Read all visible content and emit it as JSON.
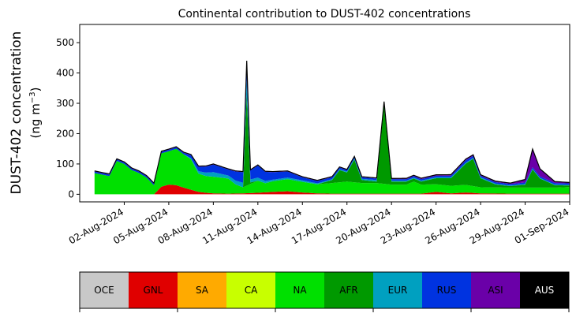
{
  "chart_data": {
    "type": "area",
    "title": "Continental contribution to DUST-402 concentrations",
    "ylabel_line1": "DUST-402 concentration",
    "ylabel_line2_prefix": "(ng m",
    "ylabel_line2_sup": "−3",
    "ylabel_line2_suffix": ")",
    "x_start": "2024-07-31",
    "x_end": "2024-09-01",
    "xlim": [
      "2024-07-30",
      "2024-09-01"
    ],
    "ylim": [
      -25,
      560
    ],
    "yticks": [
      0,
      100,
      200,
      300,
      400,
      500
    ],
    "xticks": [
      {
        "date": "2024-08-02",
        "label": "02-Aug-2024"
      },
      {
        "date": "2024-08-05",
        "label": "05-Aug-2024"
      },
      {
        "date": "2024-08-08",
        "label": "08-Aug-2024"
      },
      {
        "date": "2024-08-11",
        "label": "11-Aug-2024"
      },
      {
        "date": "2024-08-14",
        "label": "14-Aug-2024"
      },
      {
        "date": "2024-08-17",
        "label": "17-Aug-2024"
      },
      {
        "date": "2024-08-20",
        "label": "20-Aug-2024"
      },
      {
        "date": "2024-08-23",
        "label": "23-Aug-2024"
      },
      {
        "date": "2024-08-26",
        "label": "26-Aug-2024"
      },
      {
        "date": "2024-08-29",
        "label": "29-Aug-2024"
      },
      {
        "date": "2024-09-01",
        "label": "01-Sep-2024"
      }
    ],
    "total_color": "#000000",
    "series": [
      {
        "name": "GNL",
        "color": "#e00000",
        "points": [
          [
            "2024-07-31",
            0
          ],
          [
            "2024-08-04",
            0
          ],
          [
            "2024-08-04T12",
            25
          ],
          [
            "2024-08-05",
            32
          ],
          [
            "2024-08-05T12",
            30
          ],
          [
            "2024-08-06",
            22
          ],
          [
            "2024-08-06T12",
            15
          ],
          [
            "2024-08-07",
            8
          ],
          [
            "2024-08-07T12",
            5
          ],
          [
            "2024-08-08",
            3
          ],
          [
            "2024-08-09",
            2
          ],
          [
            "2024-08-10",
            3
          ],
          [
            "2024-08-11",
            5
          ],
          [
            "2024-08-12",
            8
          ],
          [
            "2024-08-13",
            10
          ],
          [
            "2024-08-14",
            6
          ],
          [
            "2024-08-15",
            3
          ],
          [
            "2024-08-16",
            2
          ],
          [
            "2024-08-18",
            2
          ],
          [
            "2024-08-20",
            2
          ],
          [
            "2024-08-22",
            2
          ],
          [
            "2024-08-23",
            8
          ],
          [
            "2024-08-24",
            3
          ],
          [
            "2024-08-25",
            6
          ],
          [
            "2024-08-26",
            3
          ],
          [
            "2024-08-28",
            2
          ],
          [
            "2024-09-01",
            2
          ]
        ]
      },
      {
        "name": "NA",
        "color": "#00e000",
        "points": [
          [
            "2024-07-31",
            70
          ],
          [
            "2024-07-31T12",
            65
          ],
          [
            "2024-08-01",
            60
          ],
          [
            "2024-08-01T12",
            110
          ],
          [
            "2024-08-02",
            100
          ],
          [
            "2024-08-02T12",
            80
          ],
          [
            "2024-08-03",
            70
          ],
          [
            "2024-08-03T12",
            55
          ],
          [
            "2024-08-04",
            30
          ],
          [
            "2024-08-04T12",
            110
          ],
          [
            "2024-08-05",
            110
          ],
          [
            "2024-08-05T12",
            120
          ],
          [
            "2024-08-06",
            110
          ],
          [
            "2024-08-06T12",
            100
          ],
          [
            "2024-08-07",
            60
          ],
          [
            "2024-08-07T12",
            55
          ],
          [
            "2024-08-08",
            55
          ],
          [
            "2024-08-09",
            50
          ],
          [
            "2024-08-09T12",
            30
          ],
          [
            "2024-08-10",
            20
          ],
          [
            "2024-08-10T12",
            30
          ],
          [
            "2024-08-11",
            40
          ],
          [
            "2024-08-11T12",
            30
          ],
          [
            "2024-08-12",
            35
          ],
          [
            "2024-08-13",
            40
          ],
          [
            "2024-08-14",
            35
          ],
          [
            "2024-08-15",
            30
          ],
          [
            "2024-08-16",
            35
          ],
          [
            "2024-08-17",
            40
          ],
          [
            "2024-08-18",
            35
          ],
          [
            "2024-08-19",
            35
          ],
          [
            "2024-08-20",
            30
          ],
          [
            "2024-08-21",
            30
          ],
          [
            "2024-08-21T12",
            40
          ],
          [
            "2024-08-22",
            30
          ],
          [
            "2024-08-23",
            25
          ],
          [
            "2024-08-24",
            25
          ],
          [
            "2024-08-25",
            25
          ],
          [
            "2024-08-26",
            20
          ],
          [
            "2024-08-27",
            20
          ],
          [
            "2024-08-28",
            20
          ],
          [
            "2024-08-29",
            20
          ],
          [
            "2024-08-30",
            20
          ],
          [
            "2024-08-31",
            20
          ],
          [
            "2024-09-01",
            22
          ]
        ]
      },
      {
        "name": "AFR",
        "color": "#009900",
        "points": [
          [
            "2024-07-31",
            0
          ],
          [
            "2024-08-09",
            0
          ],
          [
            "2024-08-10",
            0
          ],
          [
            "2024-08-10T06",
            300
          ],
          [
            "2024-08-10T12",
            5
          ],
          [
            "2024-08-11",
            0
          ],
          [
            "2024-08-15",
            0
          ],
          [
            "2024-08-16",
            10
          ],
          [
            "2024-08-16T12",
            40
          ],
          [
            "2024-08-17",
            30
          ],
          [
            "2024-08-17T12",
            75
          ],
          [
            "2024-08-18",
            10
          ],
          [
            "2024-08-19",
            5
          ],
          [
            "2024-08-19T12",
            260
          ],
          [
            "2024-08-20",
            10
          ],
          [
            "2024-08-21",
            10
          ],
          [
            "2024-08-22",
            10
          ],
          [
            "2024-08-23",
            20
          ],
          [
            "2024-08-24",
            25
          ],
          [
            "2024-08-25",
            70
          ],
          [
            "2024-08-25T12",
            90
          ],
          [
            "2024-08-26",
            30
          ],
          [
            "2024-08-27",
            10
          ],
          [
            "2024-08-28",
            5
          ],
          [
            "2024-08-29",
            10
          ],
          [
            "2024-08-29T12",
            60
          ],
          [
            "2024-08-30",
            30
          ],
          [
            "2024-08-31",
            8
          ],
          [
            "2024-09-01",
            5
          ]
        ]
      },
      {
        "name": "EUR",
        "color": "#00a0c0",
        "points": [
          [
            "2024-07-31",
            0
          ],
          [
            "2024-08-06",
            0
          ],
          [
            "2024-08-07",
            8
          ],
          [
            "2024-08-08",
            15
          ],
          [
            "2024-08-09",
            10
          ],
          [
            "2024-08-10",
            15
          ],
          [
            "2024-08-10T06",
            50
          ],
          [
            "2024-08-10T12",
            10
          ],
          [
            "2024-08-11",
            10
          ],
          [
            "2024-08-12",
            5
          ],
          [
            "2024-08-13",
            5
          ],
          [
            "2024-08-14",
            5
          ],
          [
            "2024-08-15",
            3
          ],
          [
            "2024-08-17",
            3
          ],
          [
            "2024-08-19",
            5
          ],
          [
            "2024-08-20",
            3
          ],
          [
            "2024-08-22",
            3
          ],
          [
            "2024-08-24",
            3
          ],
          [
            "2024-08-26",
            3
          ],
          [
            "2024-08-28",
            2
          ],
          [
            "2024-09-01",
            2
          ]
        ]
      },
      {
        "name": "RUS",
        "color": "#0033e0",
        "points": [
          [
            "2024-07-31",
            5
          ],
          [
            "2024-08-02",
            5
          ],
          [
            "2024-08-04",
            5
          ],
          [
            "2024-08-06",
            5
          ],
          [
            "2024-08-07",
            15
          ],
          [
            "2024-08-08",
            25
          ],
          [
            "2024-08-09",
            20
          ],
          [
            "2024-08-09T12",
            30
          ],
          [
            "2024-08-10",
            35
          ],
          [
            "2024-08-10T06",
            60
          ],
          [
            "2024-08-10T12",
            30
          ],
          [
            "2024-08-11",
            40
          ],
          [
            "2024-08-11T12",
            30
          ],
          [
            "2024-08-12",
            25
          ],
          [
            "2024-08-13",
            20
          ],
          [
            "2024-08-14",
            10
          ],
          [
            "2024-08-15",
            8
          ],
          [
            "2024-08-17",
            5
          ],
          [
            "2024-08-19",
            5
          ],
          [
            "2024-08-20",
            5
          ],
          [
            "2024-08-22",
            5
          ],
          [
            "2024-08-24",
            5
          ],
          [
            "2024-08-25",
            8
          ],
          [
            "2024-08-26",
            5
          ],
          [
            "2024-08-28",
            5
          ],
          [
            "2024-09-01",
            5
          ]
        ]
      },
      {
        "name": "ASI",
        "color": "#6a00a8",
        "points": [
          [
            "2024-07-31",
            2
          ],
          [
            "2024-08-19",
            2
          ],
          [
            "2024-08-25",
            4
          ],
          [
            "2024-08-28",
            3
          ],
          [
            "2024-08-29",
            10
          ],
          [
            "2024-08-29T12",
            60
          ],
          [
            "2024-08-30",
            25
          ],
          [
            "2024-08-31",
            5
          ],
          [
            "2024-09-01",
            3
          ]
        ]
      },
      {
        "name": "AUS",
        "color": "#000000",
        "points": [
          [
            "2024-07-31",
            0
          ],
          [
            "2024-09-01",
            0
          ]
        ]
      }
    ]
  },
  "legend": [
    {
      "label": "OCE",
      "color": "#c8c8c8",
      "text_color": "#000000"
    },
    {
      "label": "GNL",
      "color": "#e00000",
      "text_color": "#000000"
    },
    {
      "label": "SA",
      "color": "#ffaa00",
      "text_color": "#000000"
    },
    {
      "label": "CA",
      "color": "#c8ff00",
      "text_color": "#000000"
    },
    {
      "label": "NA",
      "color": "#00e000",
      "text_color": "#000000"
    },
    {
      "label": "AFR",
      "color": "#009900",
      "text_color": "#000000"
    },
    {
      "label": "EUR",
      "color": "#00a0c0",
      "text_color": "#000000"
    },
    {
      "label": "RUS",
      "color": "#0033e0",
      "text_color": "#000000"
    },
    {
      "label": "ASI",
      "color": "#6a00a8",
      "text_color": "#000000"
    },
    {
      "label": "AUS",
      "color": "#000000",
      "text_color": "#ffffff"
    }
  ]
}
